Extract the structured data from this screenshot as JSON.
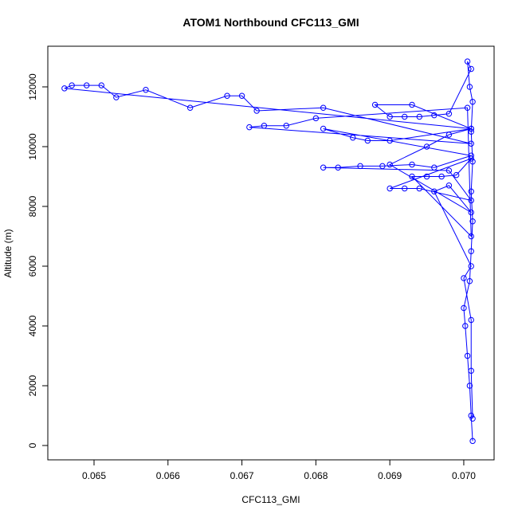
{
  "chart_data": {
    "type": "line",
    "title": "ATOM1 Northbound CFC113_GMI",
    "x_label": "CFC113_GMI",
    "y_label": "Altitude (m)",
    "xlim": [
      0.064375,
      0.07041
    ],
    "ylim": [
      -480,
      13360
    ],
    "xticks": [
      0.065,
      0.066,
      0.067,
      0.068,
      0.069,
      {
        "value": 0.07,
        "label": "0.070"
      }
    ],
    "yticks": [
      0,
      2000,
      4000,
      6000,
      8000,
      10000,
      12000
    ],
    "x": [
      0.07012,
      0.0701,
      0.07008,
      0.07005,
      0.07002,
      0.07,
      0.07008,
      0.0701,
      0.07012,
      0.0701,
      0.07012,
      0.0701,
      0.07012,
      0.07008,
      0.07005,
      0.0701,
      0.0698,
      0.0696,
      0.0694,
      0.0692,
      0.069,
      0.0688,
      0.0693,
      0.0701,
      0.069,
      0.0687,
      0.0685,
      0.0681,
      0.0701,
      0.0696,
      0.0693,
      0.0689,
      0.0686,
      0.0683,
      0.0681,
      0.0698,
      0.0701,
      0.0694,
      0.0692,
      0.069,
      0.0701,
      0.0699,
      0.0697,
      0.0695,
      0.0693,
      0.0701,
      0.07005,
      0.068,
      0.0676,
      0.0673,
      0.0671,
      0.0701,
      0.0681,
      0.0672,
      0.067,
      0.0668,
      0.0663,
      0.0657,
      0.0653,
      0.0651,
      0.0649,
      0.0647,
      0.0646,
      0.0701,
      0.0698,
      0.0695,
      0.069,
      0.0701,
      0.0698,
      0.0696,
      0.0701,
      0.07,
      0.0701,
      0.0701,
      0.07012
    ],
    "series": [
      {
        "name": "CFC113_GMI",
        "color": "#0000ff",
        "values": [
          150,
          1000,
          2000,
          3000,
          4000,
          4600,
          5500,
          6500,
          7500,
          8500,
          9500,
          10500,
          11500,
          12000,
          12850,
          12600,
          11100,
          11050,
          11000,
          11000,
          11000,
          11400,
          11400,
          10600,
          10200,
          10200,
          10300,
          10600,
          9700,
          9300,
          9400,
          9350,
          9350,
          9300,
          9300,
          9200,
          8200,
          8600,
          8600,
          8600,
          9600,
          9050,
          9000,
          9000,
          9000,
          7000,
          11300,
          10950,
          10700,
          10700,
          10650,
          10100,
          11300,
          11200,
          11700,
          11700,
          11300,
          11900,
          11650,
          12050,
          12050,
          12050,
          11950,
          10600,
          10400,
          10000,
          9400,
          7800,
          8700,
          8500,
          6000,
          5600,
          4200,
          2500,
          900
        ]
      }
    ]
  }
}
